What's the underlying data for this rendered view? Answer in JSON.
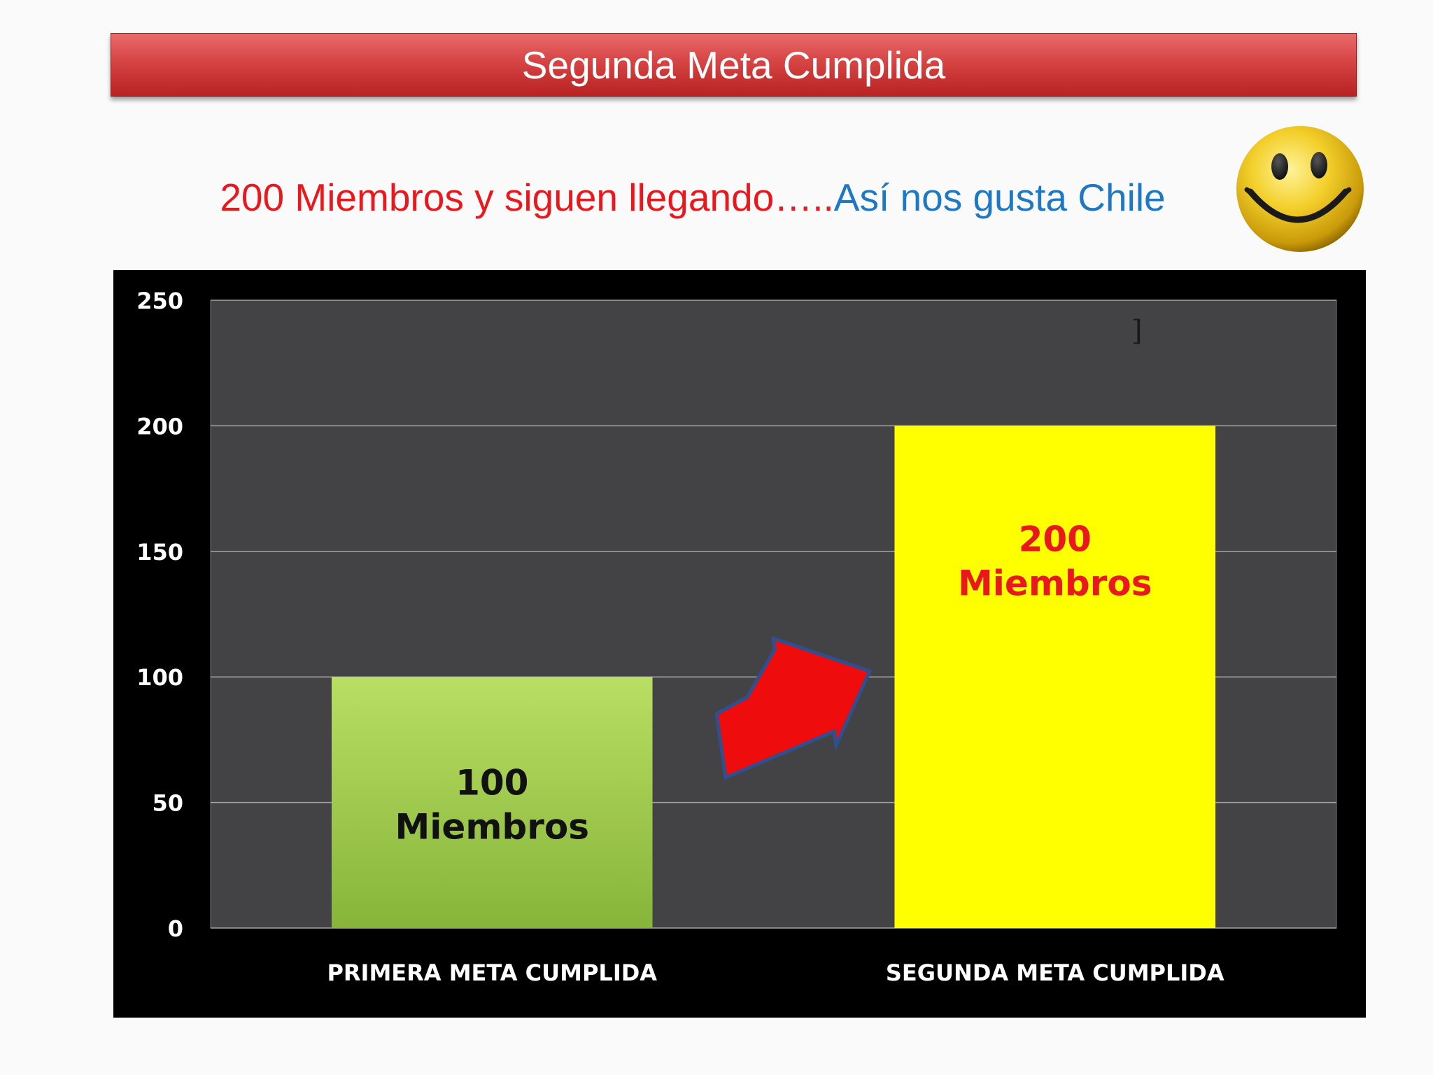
{
  "slide": {
    "title": "Segunda Meta Cumplida",
    "subtitle_red": "200 Miembros y siguen llegando…..",
    "subtitle_blue": "Así nos gusta Chile",
    "smiley_icon": "smiley-face-icon",
    "arrow_icon": "red-arrow-up-right-icon"
  },
  "colors": {
    "title_banner": "#d64444",
    "subtitle_red": "#e8181c",
    "subtitle_blue": "#1f78c4",
    "plot_background": "#434244",
    "chart_background": "#000000",
    "bar_1": "#9ccc46",
    "bar_2": "#ffff00",
    "bar_1_label": "#111111",
    "bar_2_label": "#e8181c",
    "arrow_fill": "#ee0c0c",
    "arrow_outline": "#2f4f8f"
  },
  "chart_data": {
    "type": "bar",
    "categories": [
      "PRIMERA META CUMPLIDA",
      "SEGUNDA META CUMPLIDA"
    ],
    "values": [
      100,
      200
    ],
    "bar_labels": [
      [
        "100",
        "Miembros"
      ],
      [
        "200",
        "Miembros"
      ]
    ],
    "yticks": [
      "0",
      "50",
      "100",
      "150",
      "200",
      "250"
    ],
    "ylim": [
      0,
      250
    ],
    "grid": true,
    "legend": "none",
    "annotation": "]"
  }
}
